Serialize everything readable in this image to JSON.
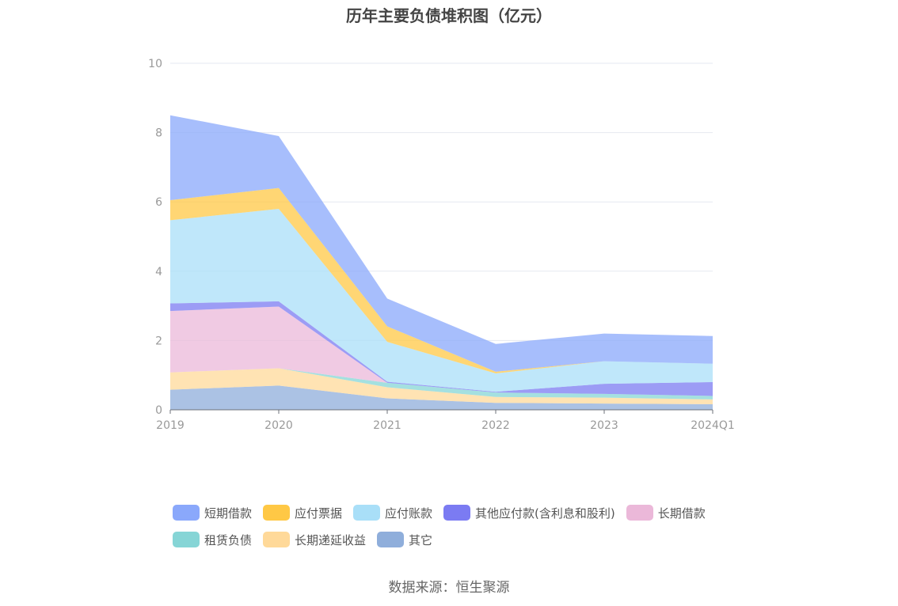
{
  "chart_data": {
    "type": "area",
    "title": "历年主要负债堆积图（亿元）",
    "categories": [
      "2019",
      "2020",
      "2021",
      "2022",
      "2023",
      "2024Q1"
    ],
    "ylim": [
      0,
      10
    ],
    "yticks": [
      "0",
      "2",
      "4",
      "6",
      "8",
      "10"
    ],
    "grid": true,
    "legend_position": "bottom",
    "stacked": true,
    "series": [
      {
        "name": "其它",
        "color": "#8faedb",
        "values": [
          0.58,
          0.7,
          0.33,
          0.2,
          0.18,
          0.16
        ]
      },
      {
        "name": "长期递延收益",
        "color": "#ffd999",
        "values": [
          0.5,
          0.5,
          0.32,
          0.17,
          0.17,
          0.14
        ]
      },
      {
        "name": "租赁负债",
        "color": "#86d5d6",
        "values": [
          0.0,
          0.0,
          0.13,
          0.13,
          0.11,
          0.1
        ]
      },
      {
        "name": "长期借款",
        "color": "#ebb8d9",
        "values": [
          1.77,
          1.78,
          0.0,
          0.0,
          0.0,
          0.0
        ]
      },
      {
        "name": "其他应付款(含利息和股利)",
        "color": "#7b7bf2",
        "values": [
          0.22,
          0.15,
          0.03,
          0.02,
          0.29,
          0.4
        ]
      },
      {
        "name": "应付账款",
        "color": "#a9dff8",
        "values": [
          2.4,
          2.67,
          1.15,
          0.53,
          0.65,
          0.53
        ]
      },
      {
        "name": "应付票据",
        "color": "#ffc845",
        "values": [
          0.58,
          0.6,
          0.45,
          0.05,
          0.0,
          0.0
        ]
      },
      {
        "name": "短期借款",
        "color": "#8aa8fb",
        "values": [
          2.45,
          1.5,
          0.8,
          0.8,
          0.8,
          0.8
        ]
      }
    ],
    "legend_order": [
      "短期借款",
      "应付票据",
      "应付账款",
      "其他应付款(含利息和股利)",
      "长期借款",
      "租赁负债",
      "长期递延收益",
      "其它"
    ]
  },
  "source_text": "数据来源：恒生聚源"
}
